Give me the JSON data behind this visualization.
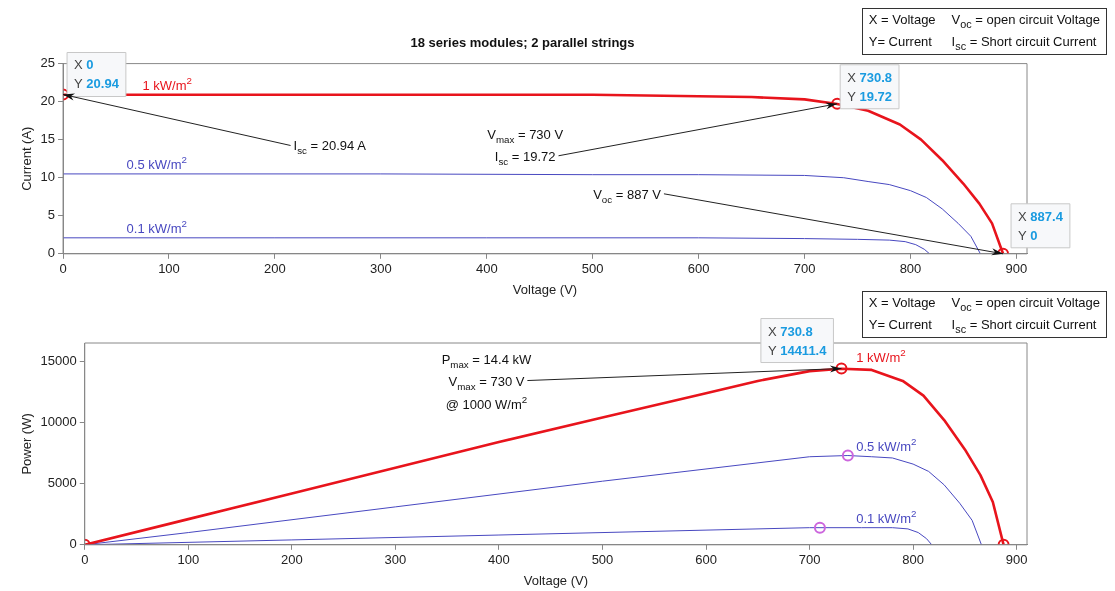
{
  "chart_data": [
    {
      "type": "line",
      "title": "18 series modules; 2 parallel strings",
      "xlabel": "Voltage (V)",
      "ylabel": "Current (A)",
      "xlim": [
        0,
        910
      ],
      "ylim": [
        0,
        25
      ],
      "xticks": [
        0,
        100,
        200,
        300,
        400,
        500,
        600,
        700,
        800,
        900
      ],
      "yticks": [
        0,
        5,
        10,
        15,
        20,
        25
      ],
      "marker": "none",
      "series": [
        {
          "name": "1 kW/m$^{2}$",
          "color": "#e8141c",
          "x": [
            0,
            100,
            200,
            300,
            400,
            500,
            600,
            650,
            700,
            730.8,
            760,
            790,
            810,
            830,
            850,
            865,
            877,
            887.4
          ],
          "values": [
            20.9,
            20.9,
            20.9,
            20.9,
            20.9,
            20.9,
            20.7,
            20.6,
            20.3,
            19.7,
            18.8,
            17,
            15,
            12.3,
            9.2,
            6.6,
            4,
            0
          ]
        },
        {
          "name": "0.5 kW/m$^{2}$",
          "color": "#4848c0",
          "x": [
            0,
            100,
            300,
            500,
            600,
            700,
            737,
            760,
            780,
            800,
            815,
            830,
            845,
            857,
            866
          ],
          "values": [
            10.5,
            10.5,
            10.5,
            10.4,
            10.4,
            10.3,
            10,
            9.5,
            9.1,
            8.3,
            7.4,
            5.9,
            4,
            2.3,
            0
          ]
        },
        {
          "name": "0.1 kW/m$^{2}$",
          "color": "#4848c0",
          "x": [
            0,
            200,
            400,
            600,
            700,
            750,
            780,
            795,
            805,
            813,
            818
          ],
          "values": [
            2.1,
            2.1,
            2.1,
            2.1,
            2,
            1.9,
            1.8,
            1.6,
            1.2,
            0.6,
            0
          ]
        },
        {
          "type": "scatter",
          "marker": "circle",
          "color": "#e8141c",
          "x": [
            0,
            730.8,
            887.4
          ],
          "values": [
            20.94,
            19.72,
            0
          ]
        }
      ],
      "annotations": [
        "X = Voltage",
        "V$_{oc}$ = open circuit Voltage",
        "Y= Current",
        "I$_{sc}$ = Short circuit Current",
        {
          "text": "X 0\nY 20.94",
          "x": 0,
          "y": 20.94
        },
        {
          "text": "X 730.8\nY 19.72",
          "x": 730.8,
          "y": 19.72
        },
        {
          "text": "X 887.4\nY 0",
          "x": 887.4,
          "y": 0
        },
        {
          "text": "I$_{sc}$ = 20.94 A",
          "x": 0,
          "y": 20.94
        },
        "V$_{max}$ = 730 V",
        {
          "text": "I$_{sc}$ = 19.72",
          "x": 730.8,
          "y": 19.72
        },
        {
          "text": "V$_{oc}$ = 887 V",
          "x": 887.4,
          "y": 0
        }
      ]
    },
    {
      "type": "line",
      "xlabel": "Voltage (V)",
      "ylabel": "Power (W)",
      "xlim": [
        0,
        910
      ],
      "ylim": [
        0,
        16500
      ],
      "xticks": [
        0,
        100,
        200,
        300,
        400,
        500,
        600,
        700,
        800,
        900
      ],
      "yticks": [
        0,
        5000,
        10000,
        15000
      ],
      "marker": "none",
      "series": [
        {
          "name": "1 kW/m$^{2}$",
          "color": "#e8141c",
          "x": [
            0,
            100,
            200,
            300,
            400,
            500,
            600,
            650,
            700,
            730.8,
            760,
            790,
            810,
            830,
            850,
            865,
            877,
            887.4
          ],
          "values": [
            0,
            2100,
            4200,
            6300,
            8400,
            10400,
            12400,
            13400,
            14200,
            14400,
            14300,
            13400,
            12200,
            10200,
            7800,
            5700,
            3500,
            0
          ]
        },
        {
          "name": "0.5 kW/m$^{2}$",
          "color": "#4848c0",
          "x": [
            0,
            100,
            300,
            500,
            600,
            700,
            737,
            760,
            780,
            800,
            815,
            830,
            845,
            857,
            866
          ],
          "values": [
            0,
            1000,
            3100,
            5200,
            6200,
            7200,
            7300,
            7200,
            7100,
            6600,
            6000,
            4900,
            3400,
            2000,
            0
          ]
        },
        {
          "name": "0.1 kW/m$^{2}$",
          "color": "#4848c0",
          "x": [
            0,
            200,
            400,
            600,
            700,
            750,
            780,
            795,
            805,
            813,
            818
          ],
          "values": [
            0,
            400,
            800,
            1200,
            1400,
            1400,
            1400,
            1300,
            1000,
            500,
            0
          ]
        },
        {
          "type": "scatter",
          "marker": "circle",
          "color": "#e8141c",
          "x": [
            0,
            730.8,
            887.4
          ],
          "values": [
            0,
            14411.4,
            0
          ]
        },
        {
          "type": "scatter",
          "marker": "circle",
          "color": "#cc66dd",
          "x": [
            737,
            710
          ],
          "values": [
            7300,
            1400
          ]
        }
      ],
      "annotations": [
        "X = Voltage",
        "V$_{oc}$ = open circuit Voltage",
        "Y= Current",
        "I$_{sc}$ = Short circuit Current",
        {
          "text": "X 730.8\nY 14411.4",
          "x": 730.8,
          "y": 14411.4
        },
        "P$_{max}$ = 14.4 kW",
        {
          "text": "V$_{max}$ = 730 V",
          "x": 730.8,
          "y": 14411.4
        },
        "@ 1000 W/m$^{2}$"
      ]
    }
  ]
}
